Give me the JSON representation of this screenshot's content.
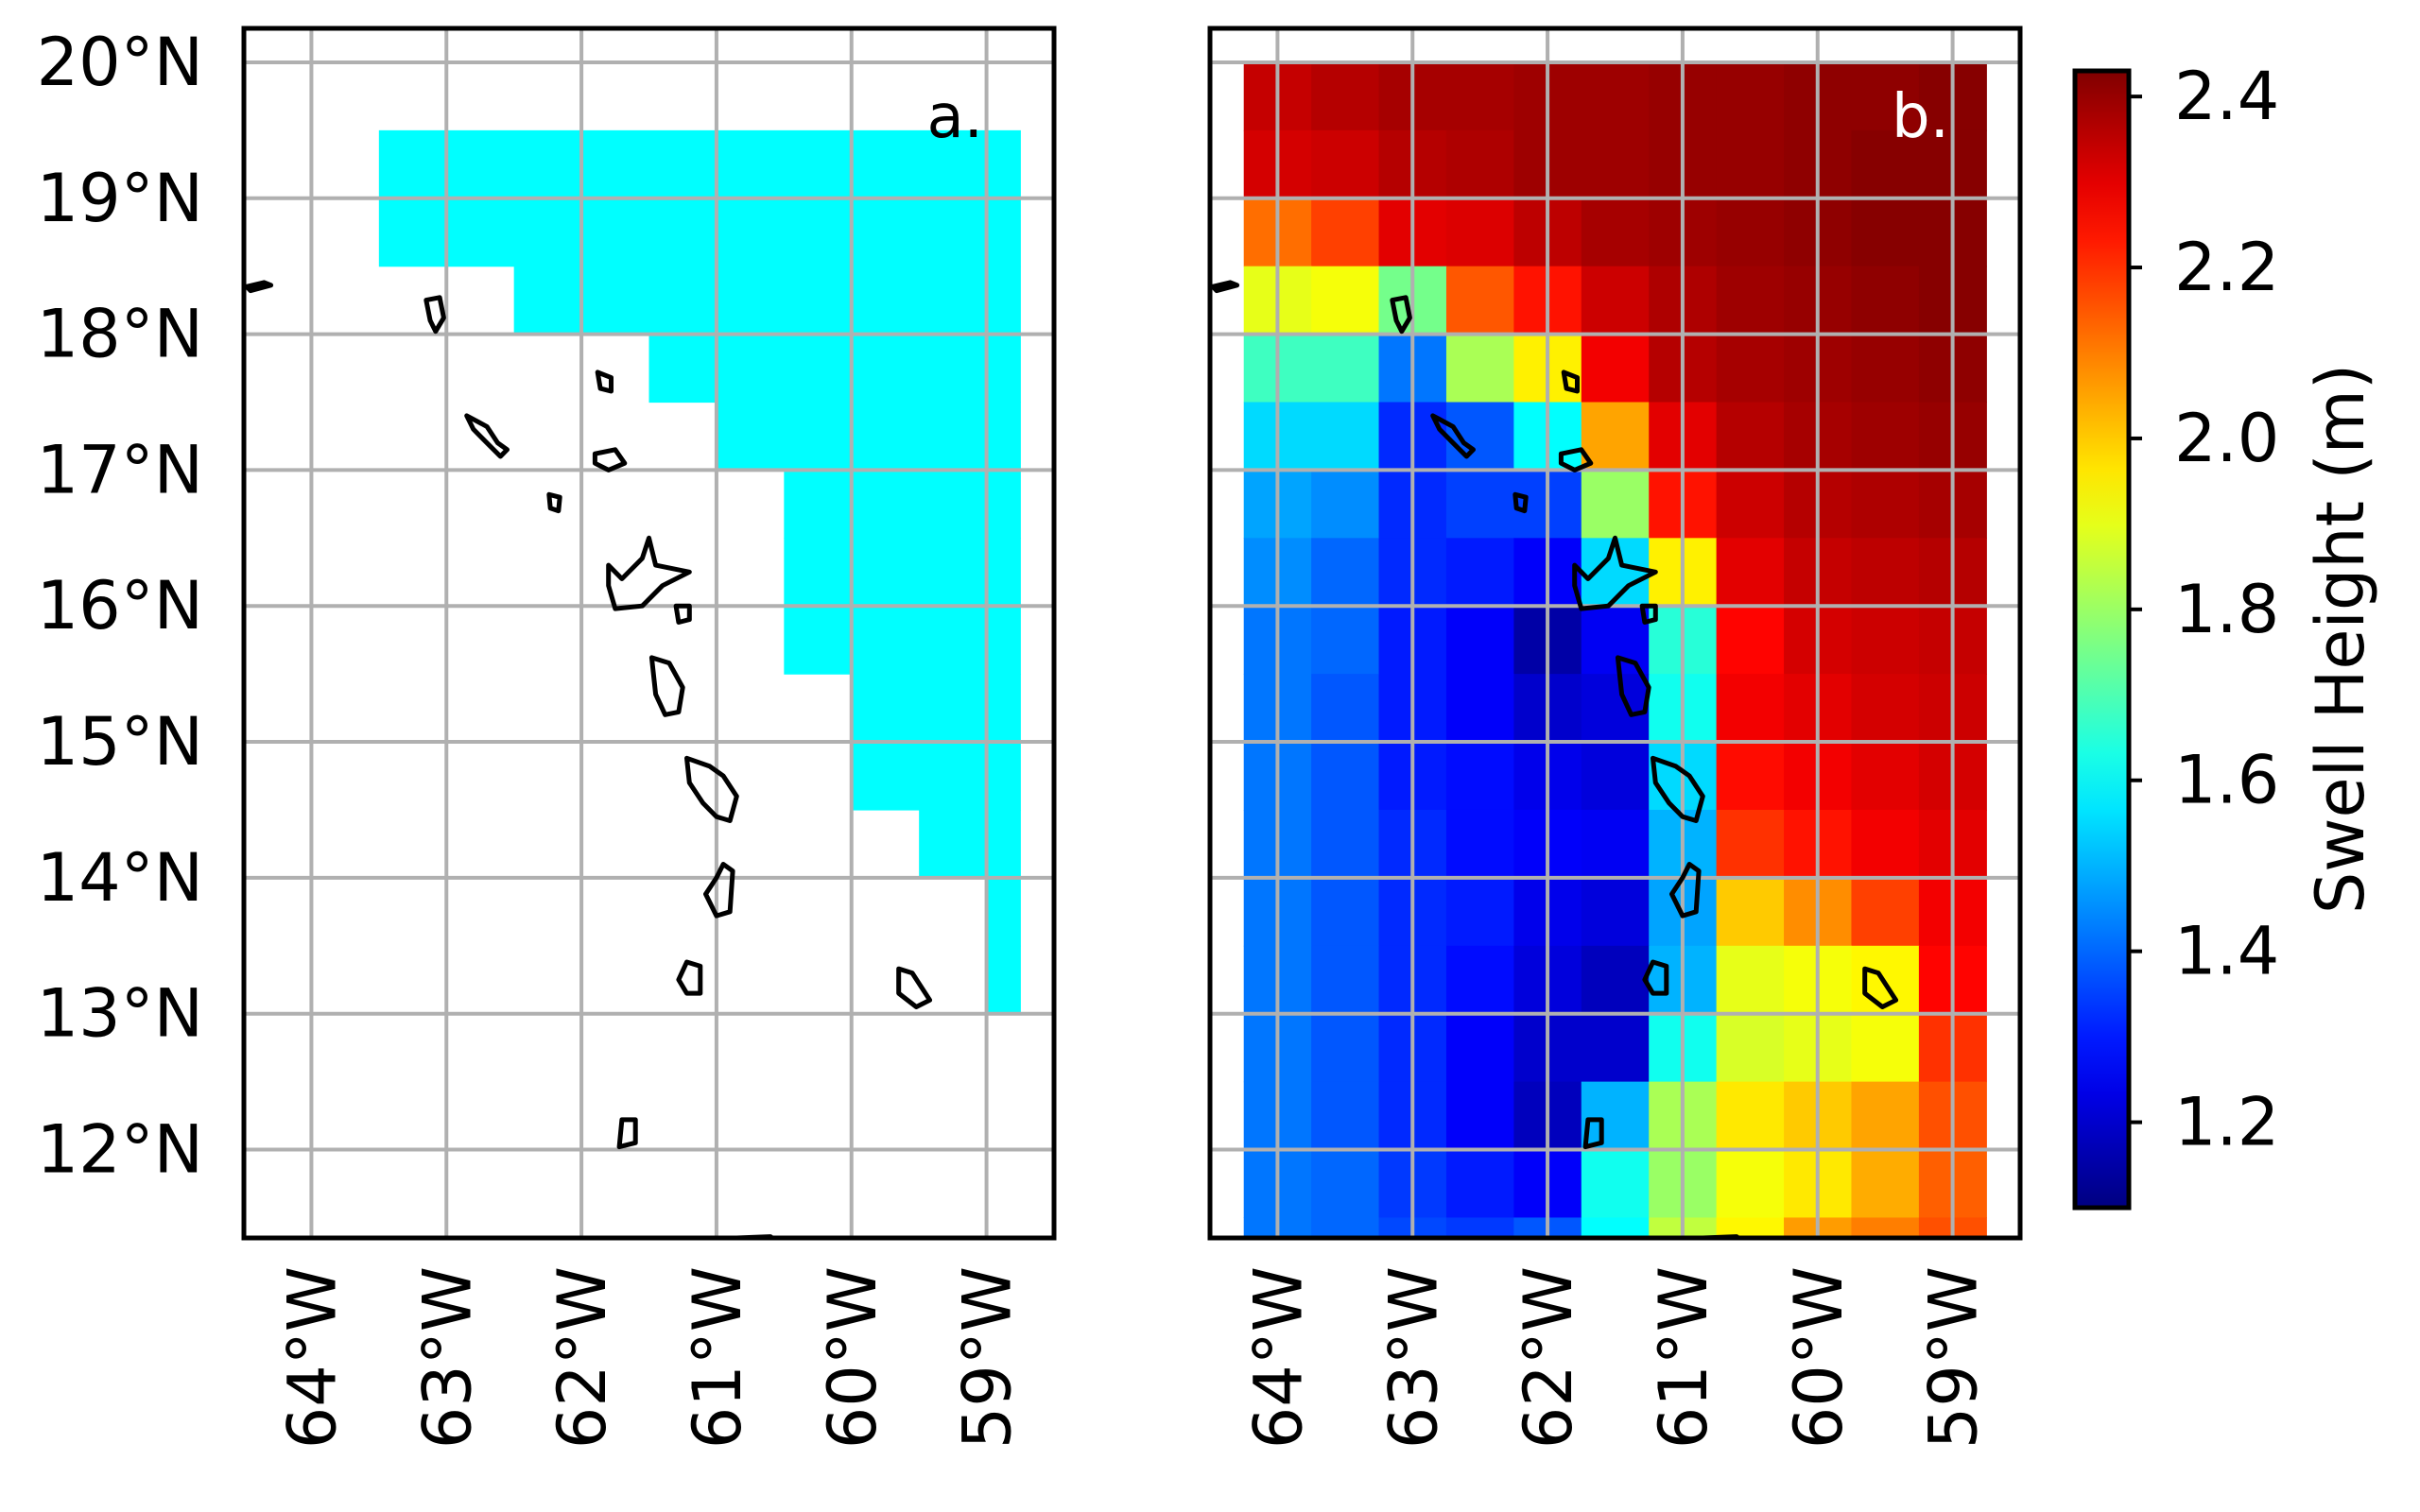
{
  "chart_data": [
    {
      "type": "heatmap",
      "panel_label": "a.",
      "panel_label_color": "#000000",
      "mask_color": "#00ffff",
      "x_tick_labels": [
        "64°W",
        "63°W",
        "62°W",
        "61°W",
        "60°W",
        "59°W"
      ],
      "y_tick_labels": [
        "20°N",
        "19°N",
        "18°N",
        "17°N",
        "16°N",
        "15°N",
        "14°N",
        "13°N",
        "12°N"
      ],
      "x_ticks": [
        -64,
        -63,
        -62,
        -61,
        -60,
        -59
      ],
      "y_ticks": [
        20,
        19,
        18,
        17,
        16,
        15,
        14,
        13,
        12
      ],
      "xlim": [
        -64.5,
        -58.5
      ],
      "ylim": [
        11.35,
        20.25
      ],
      "grid": true,
      "mask_rows": [
        {
          "lat_top": 19.5,
          "lon_start": -63.5
        },
        {
          "lat_top": 19.0,
          "lon_start": -63.5
        },
        {
          "lat_top": 18.5,
          "lon_start": -62.5
        },
        {
          "lat_top": 18.0,
          "lon_start": -61.5
        },
        {
          "lat_top": 17.5,
          "lon_start": -61.0
        },
        {
          "lat_top": 17.0,
          "lon_start": -60.5
        },
        {
          "lat_top": 16.5,
          "lon_start": -60.5
        },
        {
          "lat_top": 16.0,
          "lon_start": -60.5
        },
        {
          "lat_top": 15.5,
          "lon_start": -60.0
        },
        {
          "lat_top": 15.0,
          "lon_start": -60.0
        },
        {
          "lat_top": 14.5,
          "lon_start": -59.5
        },
        {
          "lat_top": 14.0,
          "lon_start": -59.0
        },
        {
          "lat_top": 13.5,
          "lon_start": -59.0
        }
      ]
    },
    {
      "type": "heatmap",
      "panel_label": "b.",
      "panel_label_color": "#ffffff",
      "x_tick_labels": [
        "64°W",
        "63°W",
        "62°W",
        "61°W",
        "60°W",
        "59°W"
      ],
      "x_ticks": [
        -64,
        -63,
        -62,
        -61,
        -60,
        -59
      ],
      "xlim": [
        -64.5,
        -58.5
      ],
      "ylim": [
        11.35,
        20.25
      ],
      "grid": true,
      "lon_start": -64.25,
      "lon_step": 0.5,
      "lat_top": 20.0,
      "lat_step": 0.5,
      "values": [
        [
          2.34,
          2.36,
          2.38,
          2.38,
          2.39,
          2.39,
          2.4,
          2.4,
          2.41,
          2.41,
          2.42
        ],
        [
          2.32,
          2.33,
          2.36,
          2.37,
          2.39,
          2.39,
          2.4,
          2.4,
          2.41,
          2.42,
          2.42
        ],
        [
          2.12,
          2.18,
          2.3,
          2.31,
          2.35,
          2.38,
          2.39,
          2.4,
          2.41,
          2.42,
          2.42
        ],
        [
          1.9,
          1.92,
          1.75,
          2.15,
          2.24,
          2.33,
          2.37,
          2.39,
          2.4,
          2.41,
          2.42
        ],
        [
          1.68,
          1.68,
          1.42,
          1.82,
          1.95,
          2.28,
          2.36,
          2.38,
          2.39,
          2.4,
          2.41
        ],
        [
          1.55,
          1.55,
          1.32,
          1.38,
          1.6,
          2.05,
          2.3,
          2.36,
          2.38,
          2.39,
          2.4
        ],
        [
          1.48,
          1.45,
          1.32,
          1.35,
          1.35,
          1.8,
          2.24,
          2.33,
          2.36,
          2.37,
          2.38
        ],
        [
          1.45,
          1.4,
          1.32,
          1.3,
          1.26,
          1.55,
          1.95,
          2.3,
          2.34,
          2.35,
          2.36
        ],
        [
          1.42,
          1.4,
          1.3,
          1.26,
          1.15,
          1.25,
          1.65,
          2.26,
          2.32,
          2.33,
          2.34
        ],
        [
          1.42,
          1.38,
          1.3,
          1.26,
          1.2,
          1.22,
          1.62,
          2.28,
          2.3,
          2.32,
          2.33
        ],
        [
          1.42,
          1.38,
          1.3,
          1.28,
          1.24,
          1.22,
          1.55,
          2.25,
          2.28,
          2.3,
          2.32
        ],
        [
          1.42,
          1.38,
          1.32,
          1.28,
          1.26,
          1.25,
          1.5,
          2.2,
          2.24,
          2.28,
          2.3
        ],
        [
          1.42,
          1.38,
          1.32,
          1.3,
          1.24,
          1.22,
          1.48,
          2.0,
          2.08,
          2.18,
          2.28
        ],
        [
          1.42,
          1.38,
          1.32,
          1.28,
          1.22,
          1.18,
          1.5,
          1.9,
          1.92,
          1.94,
          2.26
        ],
        [
          1.42,
          1.38,
          1.32,
          1.26,
          1.2,
          1.2,
          1.62,
          1.88,
          1.9,
          1.92,
          2.2
        ],
        [
          1.42,
          1.38,
          1.32,
          1.26,
          1.18,
          1.5,
          1.82,
          1.96,
          2.0,
          2.05,
          2.16
        ],
        [
          1.42,
          1.4,
          1.34,
          1.3,
          1.26,
          1.62,
          1.8,
          1.92,
          1.96,
          2.04,
          2.14
        ],
        [
          1.42,
          1.4,
          1.36,
          1.34,
          1.38,
          1.6,
          1.85,
          1.94,
          2.06,
          2.1,
          2.16
        ]
      ]
    }
  ],
  "colorbar": {
    "label": "Swell Height (m)",
    "vmin": 1.1,
    "vmax": 2.43,
    "ticks": [
      1.2,
      1.4,
      1.6,
      1.8,
      2.0,
      2.2,
      2.4
    ],
    "tick_labels": [
      "1.2",
      "1.4",
      "1.6",
      "1.8",
      "2.0",
      "2.2",
      "2.4"
    ],
    "colormap": "jet"
  }
}
